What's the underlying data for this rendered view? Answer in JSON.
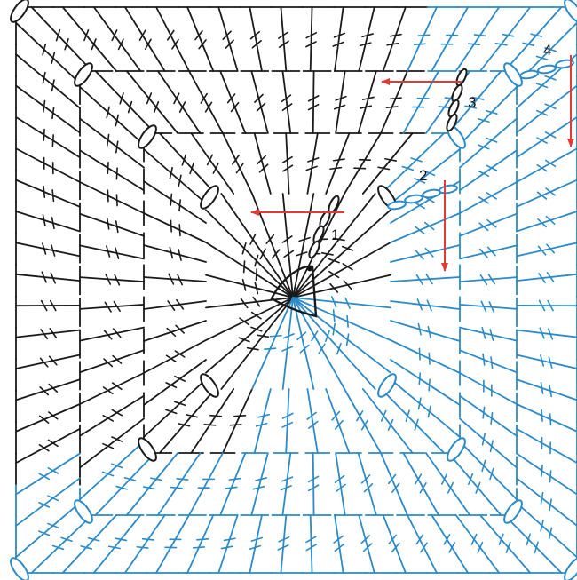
{
  "colors": {
    "black_stitches": "#1a1a1a",
    "blue_stitches": "#2b8ac8",
    "arrows": "#e53935",
    "background": "#ffffff"
  },
  "symbols": {
    "treble_stitch": "line-with-two-bars",
    "half_treble_stitch": "line-with-one-bar",
    "chain": "oval",
    "slip_stitch": "dot",
    "magic_ring": "open-ring"
  },
  "rounds": [
    {
      "label": "1",
      "direction": "left"
    },
    {
      "label": "2",
      "direction": "down"
    },
    {
      "label": "3",
      "direction": "left"
    },
    {
      "label": "4",
      "direction": "down"
    }
  ]
}
